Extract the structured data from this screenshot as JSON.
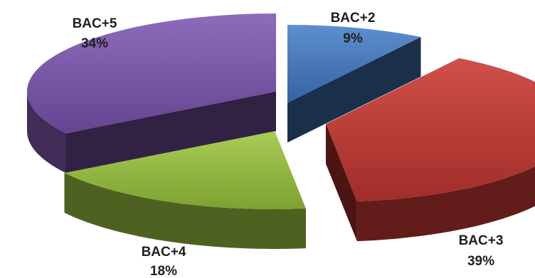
{
  "chart_data": {
    "type": "pie",
    "title": "",
    "categories": [
      "BAC+2",
      "BAC+3",
      "BAC+4",
      "BAC+5"
    ],
    "values": [
      9,
      39,
      18,
      34
    ],
    "value_labels": [
      "9%",
      "39%",
      "18%",
      "34%"
    ],
    "colors": [
      "#3f6fae",
      "#b2332f",
      "#8fb13a",
      "#7452a0"
    ],
    "style": "3d-exploded",
    "legend": "none"
  }
}
